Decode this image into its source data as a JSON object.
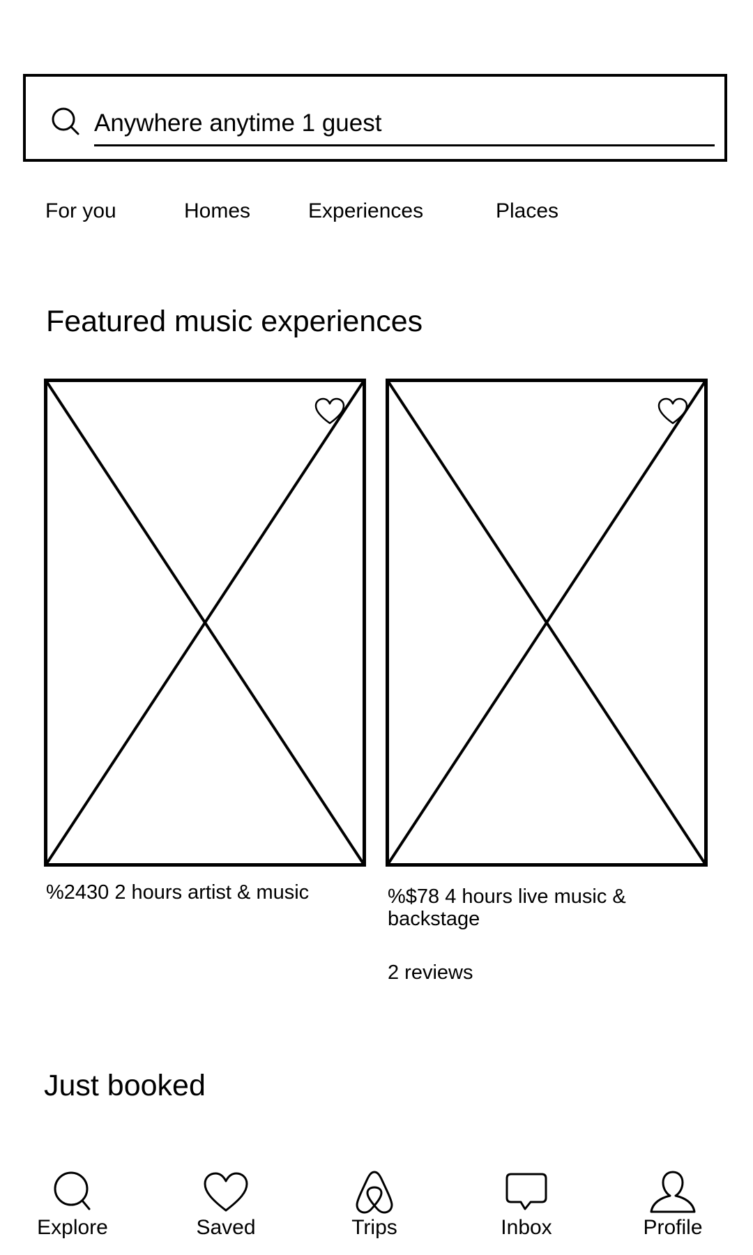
{
  "search": {
    "value": "Anywhere anytime 1 guest",
    "icon": "search-icon"
  },
  "tabs": [
    {
      "label": "For you"
    },
    {
      "label": "Homes"
    },
    {
      "label": "Experiences"
    },
    {
      "label": "Places"
    }
  ],
  "featured": {
    "title": "Featured music experiences",
    "cards": [
      {
        "description": "%2430 2 hours artist & music",
        "reviews": ""
      },
      {
        "description": "%$78 4 hours live music & backstage",
        "reviews": "2 reviews"
      }
    ]
  },
  "just_booked": {
    "title": "Just booked"
  },
  "bottom_nav": [
    {
      "label": "Explore",
      "icon": "explore-icon"
    },
    {
      "label": "Saved",
      "icon": "heart-icon"
    },
    {
      "label": "Trips",
      "icon": "airbnb-logo-icon"
    },
    {
      "label": "Inbox",
      "icon": "chat-bubble-icon"
    },
    {
      "label": "Profile",
      "icon": "person-icon"
    }
  ]
}
